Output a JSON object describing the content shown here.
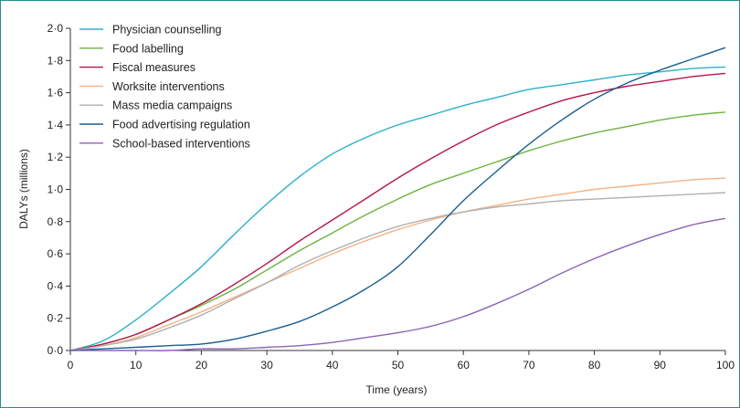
{
  "chart_data": {
    "type": "line",
    "title": "",
    "xlabel": "Time (years)",
    "ylabel": "DALYs (millions)",
    "xlim": [
      0,
      100
    ],
    "ylim": [
      0,
      2.0
    ],
    "x_ticks": [
      0,
      10,
      20,
      30,
      40,
      50,
      60,
      70,
      80,
      90,
      100
    ],
    "x_tick_labels": [
      "0",
      "10",
      "20",
      "30",
      "40",
      "50",
      "60",
      "70",
      "80",
      "90",
      "100"
    ],
    "y_ticks": [
      0,
      0.2,
      0.4,
      0.6,
      0.8,
      1.0,
      1.2,
      1.4,
      1.6,
      1.8,
      2.0
    ],
    "y_tick_labels": [
      "0·0",
      "0·2",
      "0·4",
      "0·6",
      "0·8",
      "1·0",
      "1·2",
      "1·4",
      "1·6",
      "1·8",
      "2·0"
    ],
    "grid": false,
    "legend_position": "top-left",
    "x": [
      0,
      5,
      10,
      15,
      20,
      25,
      30,
      35,
      40,
      45,
      50,
      55,
      60,
      65,
      70,
      75,
      80,
      85,
      90,
      95,
      100
    ],
    "series": [
      {
        "name": "Physician counselling",
        "color": "#2bb0c8",
        "values": [
          0,
          0.06,
          0.19,
          0.35,
          0.52,
          0.72,
          0.91,
          1.08,
          1.22,
          1.32,
          1.4,
          1.46,
          1.52,
          1.57,
          1.62,
          1.65,
          1.68,
          1.71,
          1.73,
          1.75,
          1.76
        ]
      },
      {
        "name": "Food labelling",
        "color": "#6db33f",
        "values": [
          0,
          0.04,
          0.1,
          0.19,
          0.28,
          0.38,
          0.5,
          0.62,
          0.73,
          0.84,
          0.94,
          1.03,
          1.1,
          1.17,
          1.24,
          1.3,
          1.35,
          1.39,
          1.43,
          1.46,
          1.48
        ]
      },
      {
        "name": "Fiscal measures",
        "color": "#b5174b",
        "values": [
          0,
          0.04,
          0.1,
          0.19,
          0.29,
          0.41,
          0.54,
          0.68,
          0.81,
          0.94,
          1.07,
          1.19,
          1.3,
          1.4,
          1.48,
          1.55,
          1.6,
          1.64,
          1.67,
          1.7,
          1.72
        ]
      },
      {
        "name": "Worksite interventions",
        "color": "#f4b183",
        "values": [
          0,
          0.03,
          0.08,
          0.16,
          0.24,
          0.33,
          0.42,
          0.51,
          0.6,
          0.68,
          0.75,
          0.81,
          0.86,
          0.9,
          0.94,
          0.97,
          1.0,
          1.02,
          1.04,
          1.06,
          1.07
        ]
      },
      {
        "name": "Mass media campaigns",
        "color": "#b0b0b0",
        "values": [
          0,
          0.03,
          0.07,
          0.14,
          0.22,
          0.32,
          0.42,
          0.53,
          0.62,
          0.7,
          0.77,
          0.82,
          0.86,
          0.89,
          0.91,
          0.93,
          0.94,
          0.95,
          0.96,
          0.97,
          0.98
        ]
      },
      {
        "name": "Food advertising regulation",
        "color": "#1b5e92",
        "values": [
          0,
          0.01,
          0.02,
          0.03,
          0.04,
          0.07,
          0.12,
          0.18,
          0.27,
          0.38,
          0.52,
          0.72,
          0.93,
          1.11,
          1.28,
          1.43,
          1.56,
          1.66,
          1.74,
          1.81,
          1.88
        ]
      },
      {
        "name": "School-based interventions",
        "color": "#8a63b5",
        "values": [
          0,
          0.0,
          0.0,
          0.0,
          0.01,
          0.01,
          0.02,
          0.03,
          0.05,
          0.08,
          0.11,
          0.15,
          0.21,
          0.29,
          0.38,
          0.48,
          0.57,
          0.65,
          0.72,
          0.78,
          0.82
        ]
      }
    ]
  }
}
